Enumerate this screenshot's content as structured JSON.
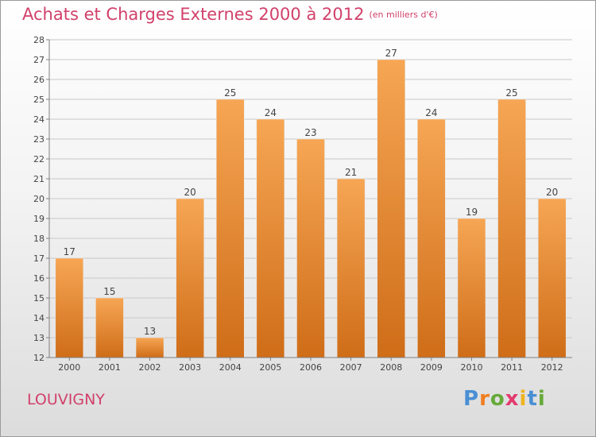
{
  "header": {
    "title": "Achats et Charges Externes 2000 à 2012",
    "subtitle": "(en milliers d'€)"
  },
  "footer": {
    "town": "LOUVIGNY",
    "brand": "Proxiti",
    "brand_letters": [
      {
        "ch": "P",
        "color": "#4a8fd4"
      },
      {
        "ch": "r",
        "color": "#f07d1e"
      },
      {
        "ch": "o",
        "color": "#66aa3a"
      },
      {
        "ch": "x",
        "color": "#e43a6e"
      },
      {
        "ch": "i",
        "color": "#f0b31e"
      },
      {
        "ch": "t",
        "color": "#4a8fd4"
      },
      {
        "ch": "i",
        "color": "#66aa3a"
      }
    ]
  },
  "colors": {
    "title": "#d1416b",
    "bar_top": "#f6a654",
    "bar_bottom": "#cf6d18",
    "grid": "#c8c8c8",
    "axis": "#808080",
    "text": "#444444"
  },
  "chart_data": {
    "type": "bar",
    "title": "Achats et Charges Externes 2000 à 2012",
    "subtitle": "(en milliers d'€)",
    "xlabel": "",
    "ylabel": "",
    "categories": [
      "2000",
      "2001",
      "2002",
      "2003",
      "2004",
      "2005",
      "2006",
      "2007",
      "2008",
      "2009",
      "2010",
      "2011",
      "2012"
    ],
    "values": [
      17,
      15,
      13,
      20,
      25,
      24,
      23,
      21,
      27,
      24,
      19,
      25,
      20
    ],
    "ylim": [
      12,
      28
    ],
    "yticks": [
      12,
      13,
      14,
      15,
      16,
      17,
      18,
      19,
      20,
      21,
      22,
      23,
      24,
      25,
      26,
      27,
      28
    ],
    "grid": true,
    "data_labels": true
  }
}
